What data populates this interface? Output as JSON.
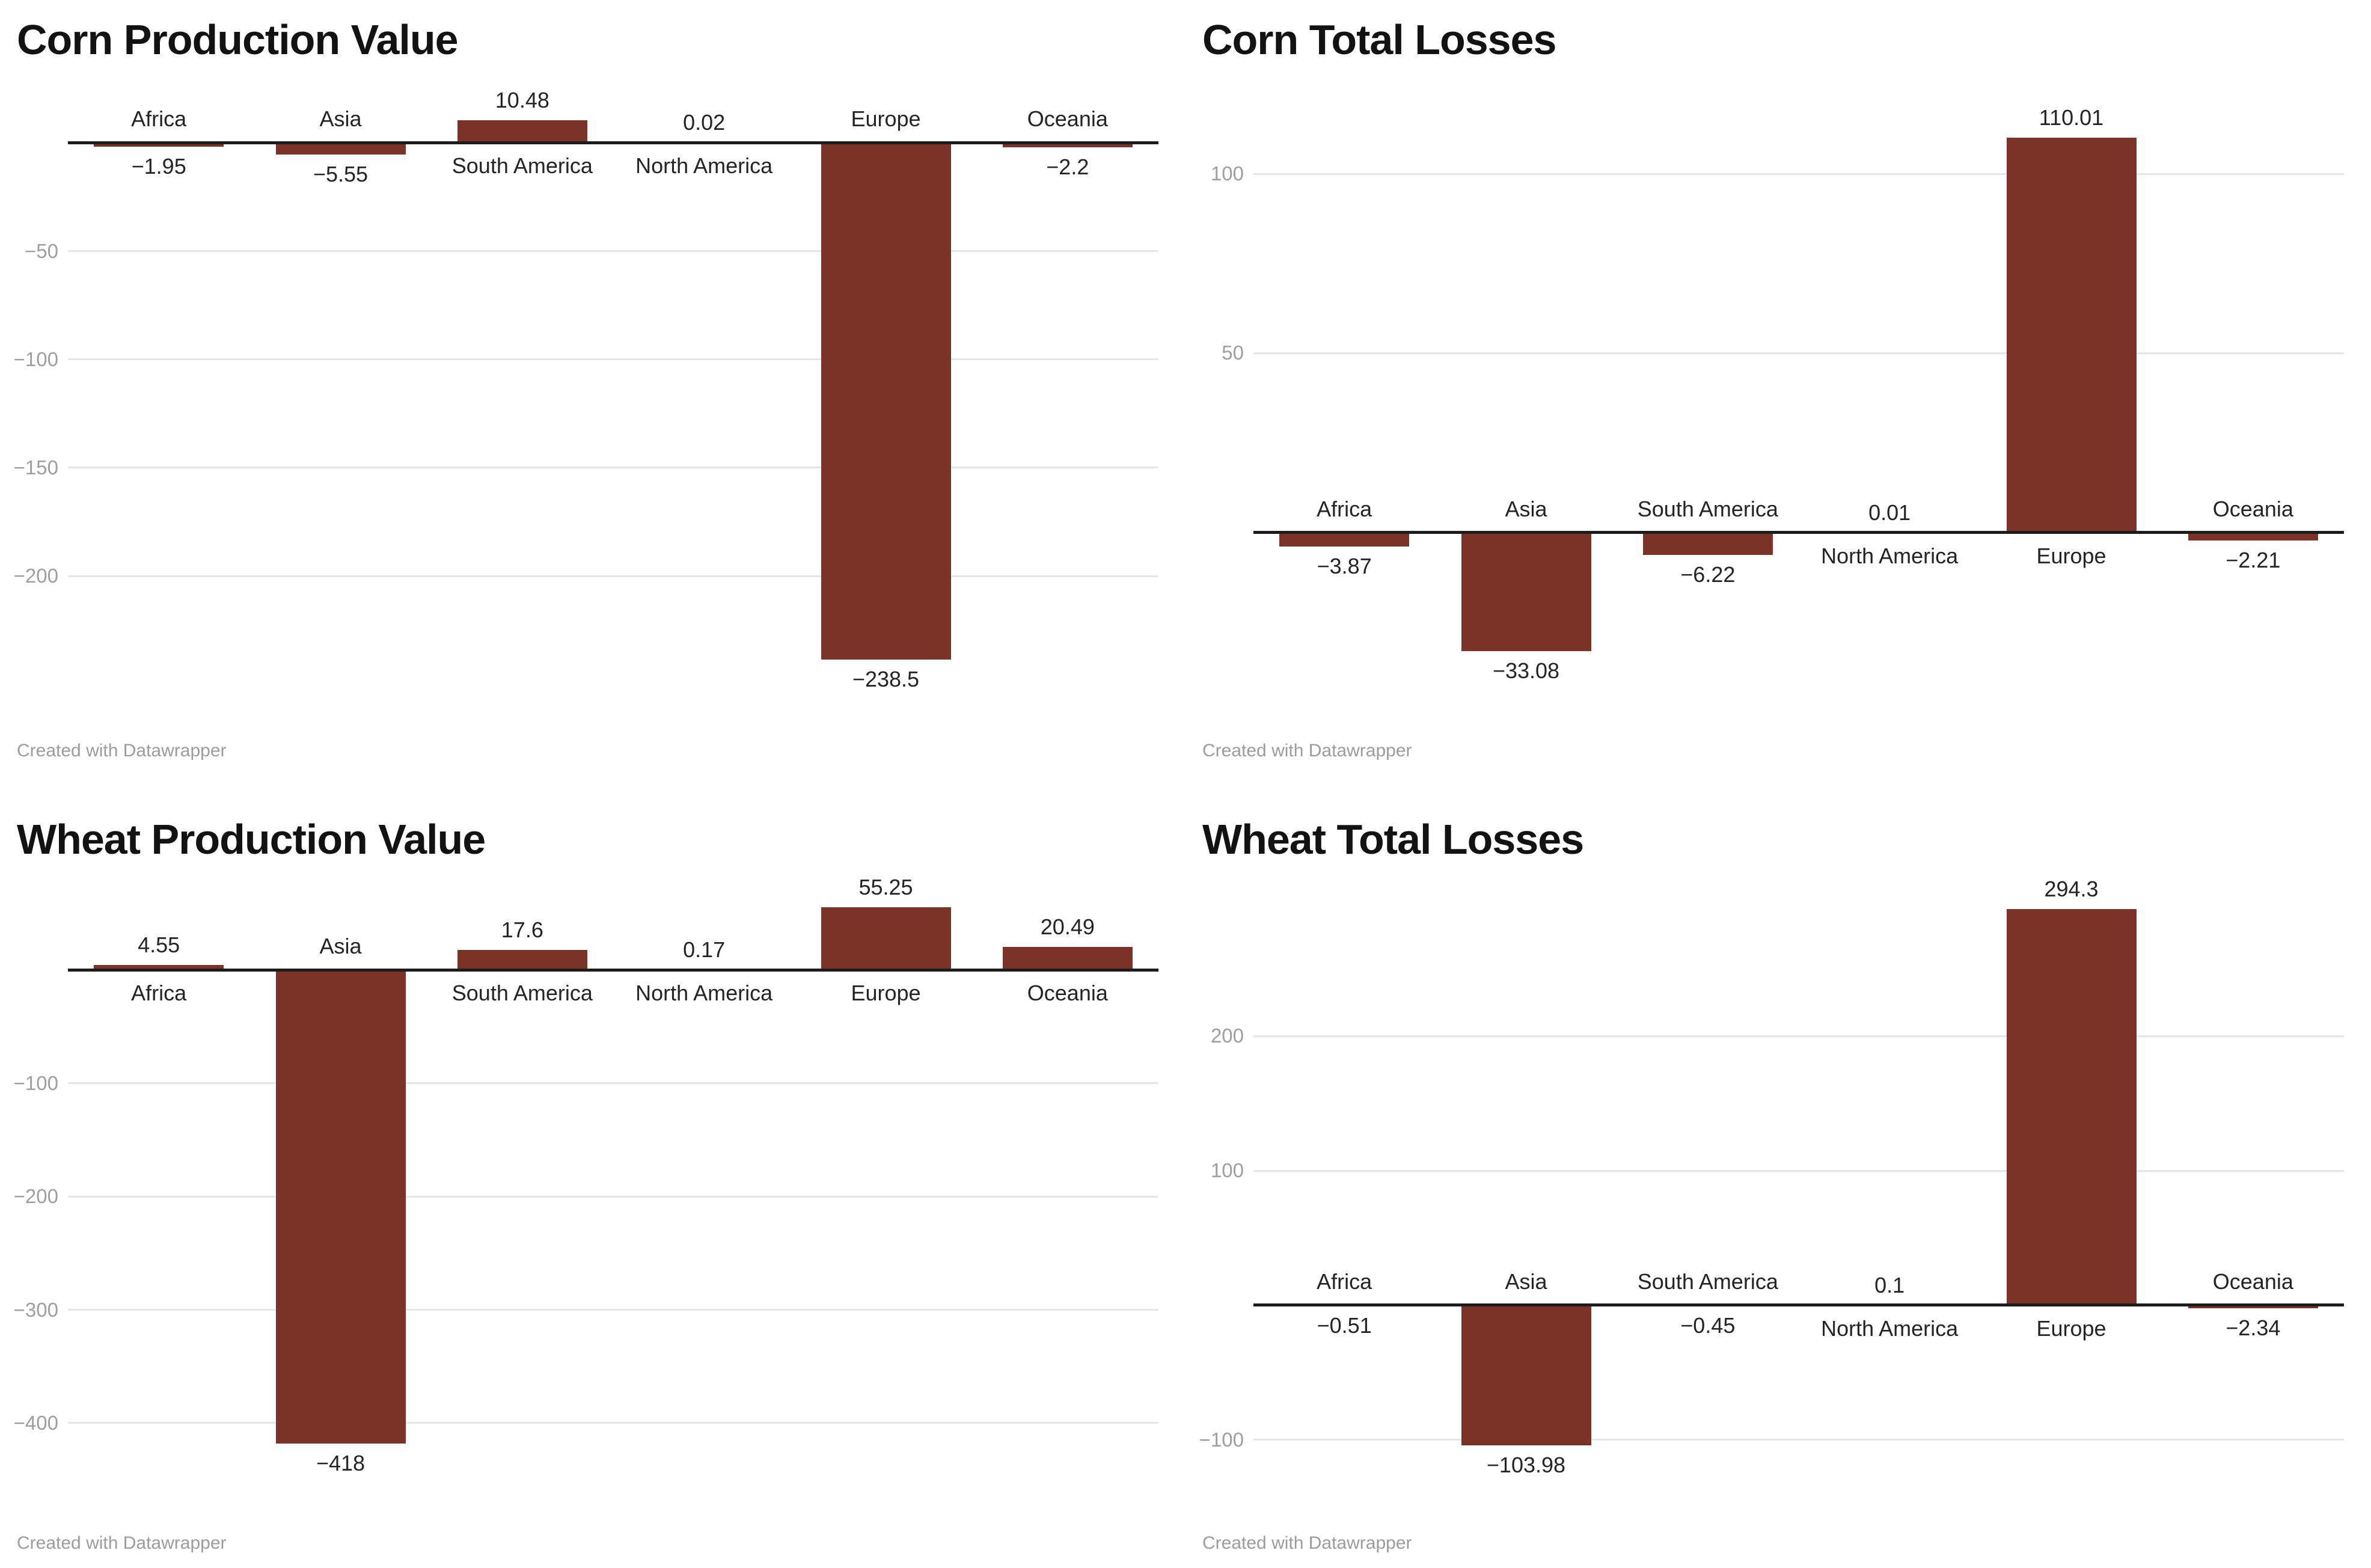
{
  "colors": {
    "bar": "#7c3327",
    "baseline": "#1c1c1c",
    "gridline": "#e6e6e6",
    "tick_label": "#9e9e9e",
    "data_label": "#242424",
    "title": "#121212",
    "footer": "#9c9c9c",
    "background": "#ffffff"
  },
  "chart_data": [
    {
      "type": "bar",
      "title": "Corn Production Value",
      "categories": [
        "Africa",
        "Asia",
        "South America",
        "North America",
        "Europe",
        "Oceania"
      ],
      "values": [
        -1.95,
        -5.55,
        10.48,
        0.02,
        -238.5,
        -2.2
      ],
      "value_labels": [
        "−1.95",
        "−5.55",
        "10.48",
        "0.02",
        "−238.5",
        "−2.2"
      ],
      "yticks": [
        -50,
        -100,
        -150,
        -200
      ],
      "ylim": [
        -256,
        27
      ],
      "grid": true,
      "legend": "none",
      "xlabel": "",
      "ylabel": "",
      "footer": "Created with Datawrapper"
    },
    {
      "type": "bar",
      "title": "Corn Total Losses",
      "categories": [
        "Africa",
        "Asia",
        "South America",
        "North America",
        "Europe",
        "Oceania"
      ],
      "values": [
        -3.87,
        -33.08,
        -6.22,
        0.01,
        110.01,
        -2.21
      ],
      "value_labels": [
        "−3.87",
        "−33.08",
        "−6.22",
        "0.01",
        "110.01",
        "−2.21"
      ],
      "yticks": [
        100,
        50
      ],
      "ylim": [
        -46,
        125
      ],
      "grid": true,
      "legend": "none",
      "xlabel": "",
      "ylabel": "",
      "footer": "Created with Datawrapper"
    },
    {
      "type": "bar",
      "title": "Wheat Production Value",
      "categories": [
        "Africa",
        "Asia",
        "South America",
        "North America",
        "Europe",
        "Oceania"
      ],
      "values": [
        4.55,
        -418,
        17.6,
        0.17,
        55.25,
        20.49
      ],
      "value_labels": [
        "4.55",
        "−418",
        "17.6",
        "0.17",
        "55.25",
        "20.49"
      ],
      "yticks": [
        -100,
        -200,
        -300,
        -400
      ],
      "ylim": [
        -460,
        76
      ],
      "grid": true,
      "legend": "none",
      "xlabel": "",
      "ylabel": "",
      "footer": "Created with Datawrapper"
    },
    {
      "type": "bar",
      "title": "Wheat Total Losses",
      "categories": [
        "Africa",
        "Asia",
        "South America",
        "North America",
        "Europe",
        "Oceania"
      ],
      "values": [
        -0.51,
        -103.98,
        -0.45,
        0.1,
        294.3,
        -2.34
      ],
      "value_labels": [
        "−0.51",
        "−103.98",
        "−0.45",
        "0.1",
        "294.3",
        "−2.34"
      ],
      "yticks": [
        200,
        100,
        -100
      ],
      "ylim": [
        -138,
        313
      ],
      "grid": true,
      "legend": "none",
      "xlabel": "",
      "ylabel": "",
      "footer": "Created with Datawrapper"
    }
  ]
}
